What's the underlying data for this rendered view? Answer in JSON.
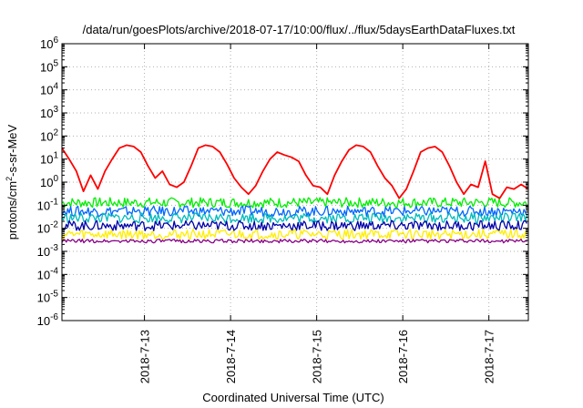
{
  "chart_data": {
    "type": "line",
    "title": "/data/run/goesPlots/archive/2018-07-17/10:00/flux/../flux/5daysEarthDataFluxes.txt",
    "xlabel": "Coordinated Universal Time (UTC)",
    "ylabel_main": "protons/cm",
    "ylabel_sup": "2",
    "ylabel_tail": "-s-sr-MeV",
    "yscale": "log",
    "ylim": [
      1e-06,
      1000000
    ],
    "xlim": [
      "2018-07-12T01:00",
      "2018-07-17T11:00"
    ],
    "grid": true,
    "y_ticks": [
      {
        "value": 1e-06,
        "base": "10",
        "exp": "-6"
      },
      {
        "value": 1e-05,
        "base": "10",
        "exp": "-5"
      },
      {
        "value": 0.0001,
        "base": "10",
        "exp": "-4"
      },
      {
        "value": 0.001,
        "base": "10",
        "exp": "-3"
      },
      {
        "value": 0.01,
        "base": "10",
        "exp": "-2"
      },
      {
        "value": 0.1,
        "base": "10",
        "exp": "-1"
      },
      {
        "value": 1,
        "base": "10",
        "exp": "0"
      },
      {
        "value": 10,
        "base": "10",
        "exp": "1"
      },
      {
        "value": 100,
        "base": "10",
        "exp": "2"
      },
      {
        "value": 1000,
        "base": "10",
        "exp": "3"
      },
      {
        "value": 10000,
        "base": "10",
        "exp": "4"
      },
      {
        "value": 100000,
        "base": "10",
        "exp": "5"
      },
      {
        "value": 1000000,
        "base": "10",
        "exp": "6"
      }
    ],
    "x_ticks": [
      {
        "value": "2018-07-13T00:00",
        "label": "2018-7-13"
      },
      {
        "value": "2018-07-14T00:00",
        "label": "2018-7-14"
      },
      {
        "value": "2018-07-15T00:00",
        "label": "2018-7-15"
      },
      {
        "value": "2018-07-16T00:00",
        "label": "2018-7-16"
      },
      {
        "value": "2018-07-17T00:00",
        "label": "2018-7-17"
      }
    ],
    "series": [
      {
        "color": "#ff0000",
        "x": [
          "2018-07-12T01:00",
          "2018-07-12T03:00",
          "2018-07-12T05:00",
          "2018-07-12T07:00",
          "2018-07-12T09:00",
          "2018-07-12T11:00",
          "2018-07-12T13:00",
          "2018-07-12T15:00",
          "2018-07-12T17:00",
          "2018-07-12T19:00",
          "2018-07-12T21:00",
          "2018-07-12T23:00",
          "2018-07-13T01:00",
          "2018-07-13T03:00",
          "2018-07-13T05:00",
          "2018-07-13T07:00",
          "2018-07-13T09:00",
          "2018-07-13T11:00",
          "2018-07-13T13:00",
          "2018-07-13T15:00",
          "2018-07-13T17:00",
          "2018-07-13T19:00",
          "2018-07-13T21:00",
          "2018-07-13T23:00",
          "2018-07-14T01:00",
          "2018-07-14T03:00",
          "2018-07-14T05:00",
          "2018-07-14T07:00",
          "2018-07-14T09:00",
          "2018-07-14T11:00",
          "2018-07-14T13:00",
          "2018-07-14T15:00",
          "2018-07-14T17:00",
          "2018-07-14T19:00",
          "2018-07-14T21:00",
          "2018-07-14T23:00",
          "2018-07-15T01:00",
          "2018-07-15T03:00",
          "2018-07-15T05:00",
          "2018-07-15T07:00",
          "2018-07-15T09:00",
          "2018-07-15T11:00",
          "2018-07-15T13:00",
          "2018-07-15T15:00",
          "2018-07-15T17:00",
          "2018-07-15T19:00",
          "2018-07-15T21:00",
          "2018-07-15T23:00",
          "2018-07-16T01:00",
          "2018-07-16T03:00",
          "2018-07-16T05:00",
          "2018-07-16T07:00",
          "2018-07-16T09:00",
          "2018-07-16T11:00",
          "2018-07-16T13:00",
          "2018-07-16T15:00",
          "2018-07-16T17:00",
          "2018-07-16T19:00",
          "2018-07-16T21:00",
          "2018-07-16T23:00",
          "2018-07-17T01:00",
          "2018-07-17T03:00",
          "2018-07-17T05:00",
          "2018-07-17T07:00",
          "2018-07-17T09:00",
          "2018-07-17T11:00"
        ],
        "values": [
          30,
          10,
          3,
          0.4,
          2,
          0.5,
          3,
          10,
          30,
          40,
          35,
          20,
          5,
          1.5,
          3,
          0.8,
          0.6,
          1,
          5,
          30,
          40,
          35,
          20,
          6,
          1.5,
          0.6,
          0.3,
          0.7,
          3,
          10,
          20,
          15,
          12,
          8,
          2,
          0.7,
          0.6,
          0.3,
          2,
          8,
          25,
          40,
          35,
          20,
          5,
          1.5,
          0.7,
          0.2,
          0.5,
          3,
          20,
          30,
          35,
          20,
          5,
          1,
          0.3,
          0.8,
          0.6,
          8,
          0.3,
          0.2,
          0.6,
          0.5,
          0.8,
          0.5
        ]
      },
      {
        "color": "#00ee00",
        "x": [
          "2018-07-12T01:00",
          "2018-07-17T11:00"
        ],
        "values": [
          0.13,
          0.13
        ]
      },
      {
        "color": "#0066ff",
        "x": [
          "2018-07-12T01:00",
          "2018-07-17T11:00"
        ],
        "values": [
          0.055,
          0.055
        ]
      },
      {
        "color": "#00bbbb",
        "x": [
          "2018-07-12T01:00",
          "2018-07-17T11:00"
        ],
        "values": [
          0.028,
          0.028
        ]
      },
      {
        "color": "#0000aa",
        "x": [
          "2018-07-12T01:00",
          "2018-07-17T11:00"
        ],
        "values": [
          0.013,
          0.013
        ]
      },
      {
        "color": "#ffee00",
        "x": [
          "2018-07-12T01:00",
          "2018-07-17T11:00"
        ],
        "values": [
          0.0055,
          0.0055
        ]
      },
      {
        "color": "#880088",
        "x": [
          "2018-07-12T01:00",
          "2018-07-17T11:00"
        ],
        "values": [
          0.0028,
          0.0028
        ]
      }
    ]
  }
}
